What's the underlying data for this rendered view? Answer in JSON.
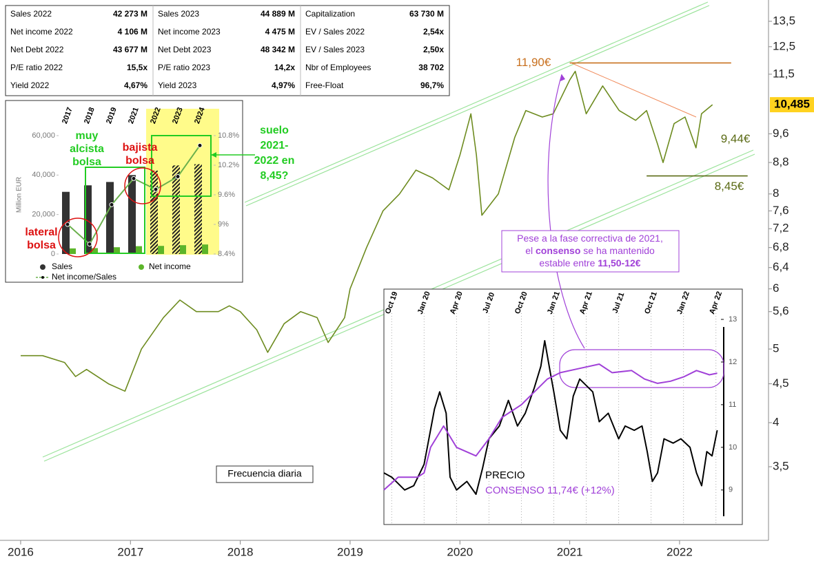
{
  "table": {
    "rows": [
      [
        "Sales 2022",
        "42 273 M",
        "Sales 2023",
        "44 889 M",
        "Capitalization",
        "63 730 M"
      ],
      [
        "Net income 2022",
        "4 106 M",
        "Net income 2023",
        "4 475 M",
        "EV / Sales 2022",
        "2,54x"
      ],
      [
        "Net Debt 2022",
        "43 677 M",
        "Net Debt 2023",
        "48 342 M",
        "EV / Sales 2023",
        "2,50x"
      ],
      [
        "P/E ratio 2022",
        "15,5x",
        "P/E ratio 2023",
        "14,2x",
        "Nbr of Employees",
        "38 702"
      ],
      [
        "Yield 2022",
        "4,67%",
        "Yield 2023",
        "4,97%",
        "Free-Float",
        "96,7%"
      ]
    ]
  },
  "notes": {
    "frequency": "Frecuencia diaria",
    "floor": [
      "suelo",
      "2021-",
      "2022 en",
      "8,45?"
    ],
    "callout": [
      [
        "Pese a la fase correctiva de 2021,"
      ],
      [
        "el ",
        "consenso",
        " se ha mantenido"
      ],
      [
        "estable entre ",
        "11,50-12€"
      ]
    ]
  },
  "chart_data": [
    {
      "type": "line",
      "log_scale": true,
      "color": "#6d8b1f",
      "x": [
        2016.0,
        2016.2,
        2016.4,
        2016.5,
        2016.6,
        2016.8,
        2016.95,
        2017.1,
        2017.3,
        2017.45,
        2017.6,
        2017.8,
        2017.9,
        2018.0,
        2018.15,
        2018.25,
        2018.4,
        2018.55,
        2018.7,
        2018.8,
        2018.95,
        2019.0,
        2019.15,
        2019.3,
        2019.45,
        2019.6,
        2019.75,
        2019.9,
        2020.0,
        2020.1,
        2020.15,
        2020.2,
        2020.35,
        2020.5,
        2020.6,
        2020.75,
        2020.85,
        2021.0,
        2021.05,
        2021.15,
        2021.3,
        2021.45,
        2021.6,
        2021.7,
        2021.8,
        2021.85,
        2021.95,
        2022.05,
        2022.15,
        2022.2,
        2022.3
      ],
      "values": [
        4.9,
        4.9,
        4.8,
        4.6,
        4.7,
        4.5,
        4.4,
        5.0,
        5.5,
        5.8,
        5.6,
        5.6,
        5.7,
        5.6,
        5.3,
        4.95,
        5.4,
        5.6,
        5.5,
        5.1,
        5.5,
        6.0,
        6.8,
        7.6,
        8.0,
        8.6,
        8.4,
        8.1,
        9.0,
        10.2,
        9.0,
        7.5,
        8.0,
        9.5,
        10.3,
        10.1,
        10.2,
        11.3,
        11.6,
        10.2,
        11.1,
        10.3,
        10.0,
        10.3,
        9.3,
        8.8,
        9.9,
        10.1,
        9.2,
        10.2,
        10.485
      ],
      "xlim": [
        2015.812,
        2022.81
      ],
      "xticks": [
        2016,
        2017,
        2018,
        2019,
        2020,
        2021,
        2022
      ],
      "ylim": [
        2.8,
        14.4
      ],
      "yticks": [
        {
          "value": 13.5,
          "label": "13,5"
        },
        {
          "value": 12.5,
          "label": "12,5"
        },
        {
          "value": 11.5,
          "label": "11,5"
        },
        {
          "value": 9.6,
          "label": "9,6"
        },
        {
          "value": 8.8,
          "label": "8,8"
        },
        8,
        {
          "value": 7.6,
          "label": "7,6"
        },
        {
          "value": 7.2,
          "label": "7,2"
        },
        {
          "value": 6.8,
          "label": "6,8"
        },
        {
          "value": 6.4,
          "label": "6,4"
        },
        6,
        {
          "value": 5.6,
          "label": "5,6"
        },
        5,
        {
          "value": 4.5,
          "label": "4,5"
        },
        4,
        {
          "value": 3.5,
          "label": "3,5"
        }
      ],
      "annotations": [
        {
          "label": "11,90€",
          "value": 11.9,
          "x": [
            2021.0,
            2022.47
          ],
          "color": "#c8701e"
        },
        {
          "label": "9,44€",
          "value": 9.44,
          "color": "#5a6a14"
        },
        {
          "label": "8,45€",
          "value": 8.45,
          "x": [
            2021.7,
            2022.62
          ],
          "color": "#5a6a14"
        }
      ],
      "last_price": {
        "label": "10,485",
        "value": 10.485
      }
    },
    {
      "type": "bar",
      "categories": [
        "2017",
        "2018",
        "2019",
        "2021",
        "2022",
        "2023",
        "2024"
      ],
      "series": [
        {
          "name": "Sales",
          "color": "#333333",
          "values": [
            31500,
            34800,
            36500,
            40000,
            42273,
            44889,
            45500
          ]
        },
        {
          "name": "Net income",
          "color": "#5cb52a",
          "values": [
            2835,
            2993,
            3431,
            3972,
            4106,
            4475,
            4823
          ]
        },
        {
          "name": "Net income/Sales",
          "color": "#6ab04c",
          "axis": "y2",
          "values": [
            9.0,
            8.6,
            9.4,
            9.93,
            9.71,
            9.97,
            10.6
          ]
        }
      ],
      "ylabel": "Million EUR",
      "ylim": [
        0,
        60000
      ],
      "yticks": [
        0,
        {
          "value": 20000,
          "label": "20,000"
        },
        {
          "value": 40000,
          "label": "40,000"
        },
        {
          "value": 60000,
          "label": "60,000"
        }
      ],
      "y2lim": [
        8.4,
        10.8
      ],
      "y2ticks": [
        {
          "value": 8.4,
          "label": "8.4%"
        },
        {
          "value": 9,
          "label": "9%"
        },
        {
          "value": 9.6,
          "label": "9.6%"
        },
        {
          "value": 10.2,
          "label": "10.2%"
        },
        {
          "value": 10.8,
          "label": "10.8%"
        }
      ],
      "annotations": [
        {
          "lines": [
            "muy",
            "alcista",
            "bolsa"
          ],
          "color": "#22cc22"
        },
        {
          "lines": [
            "bajista",
            "bolsa"
          ],
          "color": "#dd1111"
        },
        {
          "lines": [
            "lateral",
            "bolsa"
          ],
          "color": "#dd1111"
        }
      ]
    },
    {
      "type": "line",
      "xlim": [
        2019.69,
        2022.31
      ],
      "xticks": [
        {
          "value": 2019.75,
          "label": "Oct 19"
        },
        {
          "value": 2020.0,
          "label": "Jan 20"
        },
        {
          "value": 2020.25,
          "label": "Apr 20"
        },
        {
          "value": 2020.5,
          "label": "Jul 20"
        },
        {
          "value": 2020.75,
          "label": "Oct 20"
        },
        {
          "value": 2021.0,
          "label": "Jan 21"
        },
        {
          "value": 2021.25,
          "label": "Apr 21"
        },
        {
          "value": 2021.5,
          "label": "Jul 21"
        },
        {
          "value": 2021.75,
          "label": "Oct 21"
        },
        {
          "value": 2022.0,
          "label": "Jan 22"
        },
        {
          "value": 2022.25,
          "label": "Apr 22"
        }
      ],
      "ylim": [
        8.19,
        13.71
      ],
      "yticks": [
        9,
        10,
        11,
        12,
        13
      ],
      "series": [
        {
          "name": "PRECIO",
          "color": "#000000",
          "x": [
            2019.69,
            2019.75,
            2019.85,
            2019.92,
            2020.0,
            2020.08,
            2020.12,
            2020.17,
            2020.2,
            2020.25,
            2020.33,
            2020.4,
            2020.45,
            2020.5,
            2020.58,
            2020.65,
            2020.72,
            2020.78,
            2020.85,
            2020.9,
            2020.93,
            2020.97,
            2021.0,
            2021.05,
            2021.1,
            2021.15,
            2021.2,
            2021.3,
            2021.35,
            2021.42,
            2021.5,
            2021.55,
            2021.62,
            2021.68,
            2021.72,
            2021.76,
            2021.8,
            2021.85,
            2021.92,
            2021.98,
            2022.05,
            2022.1,
            2022.14,
            2022.18,
            2022.22,
            2022.26
          ],
          "values": [
            9.4,
            9.3,
            9.0,
            9.1,
            9.6,
            10.9,
            11.3,
            10.8,
            9.3,
            9.0,
            9.2,
            8.9,
            9.5,
            10.2,
            10.5,
            11.1,
            10.5,
            10.8,
            11.4,
            11.9,
            12.5,
            11.8,
            11.3,
            10.4,
            10.2,
            11.2,
            11.6,
            11.3,
            10.6,
            10.8,
            10.2,
            10.5,
            10.4,
            10.5,
            9.9,
            9.2,
            9.4,
            10.2,
            10.1,
            10.2,
            10.0,
            9.4,
            9.1,
            9.9,
            9.8,
            10.4
          ]
        },
        {
          "name": "CONSENSO 11,74€ (+12%)",
          "color": "#a040d8",
          "x": [
            2019.69,
            2019.8,
            2019.95,
            2020.0,
            2020.05,
            2020.15,
            2020.25,
            2020.4,
            2020.5,
            2020.6,
            2020.75,
            2020.85,
            2020.95,
            2021.05,
            2021.2,
            2021.35,
            2021.45,
            2021.6,
            2021.7,
            2021.8,
            2021.9,
            2022.0,
            2022.1,
            2022.2,
            2022.26
          ],
          "values": [
            9.0,
            9.3,
            9.3,
            9.4,
            10.0,
            10.5,
            10.0,
            9.8,
            10.2,
            10.7,
            11.0,
            11.3,
            11.6,
            11.75,
            11.85,
            11.95,
            11.75,
            11.8,
            11.6,
            11.5,
            11.55,
            11.65,
            11.8,
            11.7,
            11.74
          ]
        }
      ]
    }
  ]
}
